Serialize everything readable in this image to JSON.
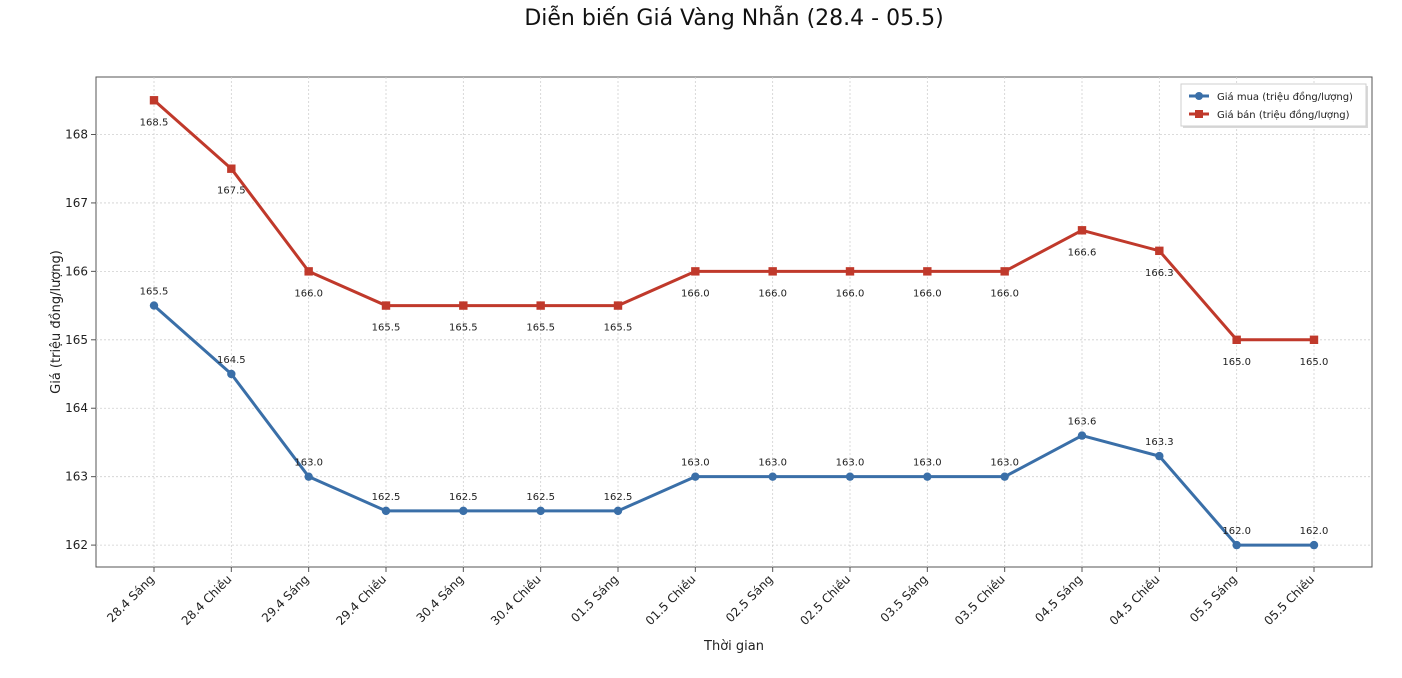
{
  "chart_data": {
    "type": "line",
    "title": "Diễn biến Giá Vàng Nhẫn (28.4 - 05.5)",
    "xlabel": "Thời gian",
    "ylabel": "Giá (triệu đồng/lượng)",
    "categories": [
      "28.4 Sáng",
      "28.4 Chiều",
      "29.4 Sáng",
      "29.4 Chiều",
      "30.4 Sáng",
      "30.4 Chiều",
      "01.5 Sáng",
      "01.5 Chiều",
      "02.5 Sáng",
      "02.5 Chiều",
      "03.5 Sáng",
      "03.5 Chiều",
      "04.5 Sáng",
      "04.5 Chiều",
      "05.5 Sáng",
      "05.5 Chiều"
    ],
    "ylim": [
      161.68,
      168.84
    ],
    "yticks": [
      162,
      163,
      164,
      165,
      166,
      167,
      168
    ],
    "grid": true,
    "legend_position": "top-right",
    "series": [
      {
        "name": "Giá mua (triệu đồng/lượng)",
        "color": "#3a6fa8",
        "marker": "circle",
        "values": [
          165.5,
          164.5,
          163.0,
          162.5,
          162.5,
          162.5,
          162.5,
          163.0,
          163.0,
          163.0,
          163.0,
          163.0,
          163.6,
          163.3,
          162.0,
          162.0
        ],
        "labels": [
          "165.5",
          "164.5",
          "163.0",
          "162.5",
          "162.5",
          "162.5",
          "162.5",
          "163.0",
          "163.0",
          "163.0",
          "163.0",
          "163.0",
          "163.6",
          "163.3",
          "162.0",
          "162.0"
        ]
      },
      {
        "name": "Giá bán (triệu đồng/lượng)",
        "color": "#c0392b",
        "marker": "square",
        "values": [
          168.5,
          167.5,
          166.0,
          165.5,
          165.5,
          165.5,
          165.5,
          166.0,
          166.0,
          166.0,
          166.0,
          166.0,
          166.6,
          166.3,
          165.0,
          165.0
        ],
        "labels": [
          "168.5",
          "167.5",
          "166.0",
          "165.5",
          "165.5",
          "165.5",
          "165.5",
          "166.0",
          "166.0",
          "166.0",
          "166.0",
          "166.0",
          "166.6",
          "166.3",
          "165.0",
          "165.0"
        ]
      }
    ]
  }
}
